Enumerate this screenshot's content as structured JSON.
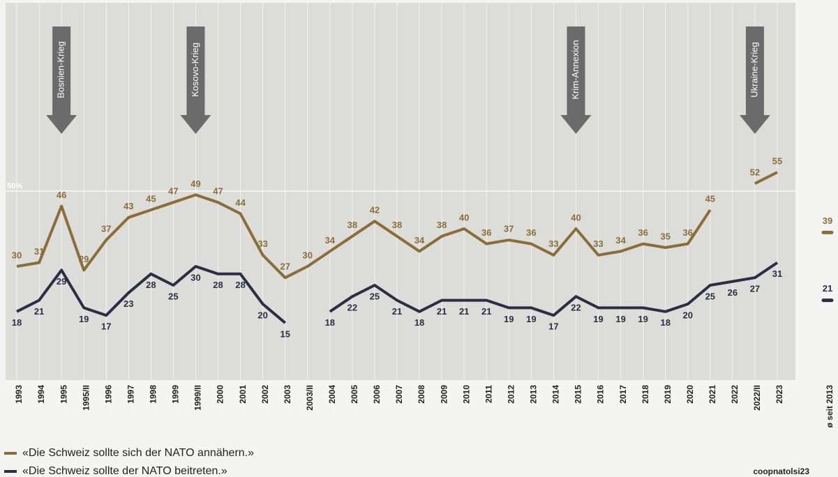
{
  "chart_data": {
    "type": "line",
    "categories": [
      "1993",
      "1994",
      "1995",
      "1995/II",
      "1996",
      "1997",
      "1998",
      "1999",
      "1999/II",
      "2000",
      "2001",
      "2002",
      "2003",
      "2003/II",
      "2004",
      "2005",
      "2006",
      "2007",
      "2008",
      "2009",
      "2010",
      "2011",
      "2012",
      "2013",
      "2014",
      "2015",
      "2016",
      "2017",
      "2018",
      "2019",
      "2020",
      "2021",
      "2022",
      "2022/II",
      "2023"
    ],
    "series": [
      {
        "name": "«Die Schweiz sollte sich der NATO annähern.»",
        "color": "#8b6d3a",
        "values": [
          30,
          31,
          46,
          29,
          37,
          43,
          45,
          47,
          49,
          47,
          44,
          33,
          27,
          30,
          34,
          38,
          42,
          38,
          34,
          38,
          40,
          36,
          37,
          36,
          33,
          40,
          33,
          34,
          36,
          35,
          36,
          45,
          null,
          52,
          55
        ]
      },
      {
        "name": "«Die Schweiz sollte der NATO beitreten.»",
        "color": "#2b2f45",
        "values": [
          18,
          21,
          29,
          19,
          17,
          23,
          28,
          25,
          30,
          28,
          28,
          20,
          15,
          null,
          18,
          22,
          25,
          21,
          18,
          21,
          21,
          21,
          19,
          19,
          17,
          22,
          19,
          19,
          19,
          18,
          20,
          25,
          26,
          27,
          31
        ]
      }
    ],
    "ylim": [
      0,
      100
    ],
    "yticks": [
      {
        "value": 50,
        "label": "50%"
      }
    ],
    "average": {
      "label": "ø seit 2013",
      "values": [
        39,
        21
      ]
    },
    "annotations": [
      {
        "text": "Bosnien-Krieg",
        "category": 2
      },
      {
        "text": "Kosovo-Krieg",
        "category": 8
      },
      {
        "text": "Krim-Annexion",
        "category": 25
      },
      {
        "text": "Ukraine-Krieg",
        "category": 33
      }
    ],
    "source": "coopnatolsi23"
  }
}
